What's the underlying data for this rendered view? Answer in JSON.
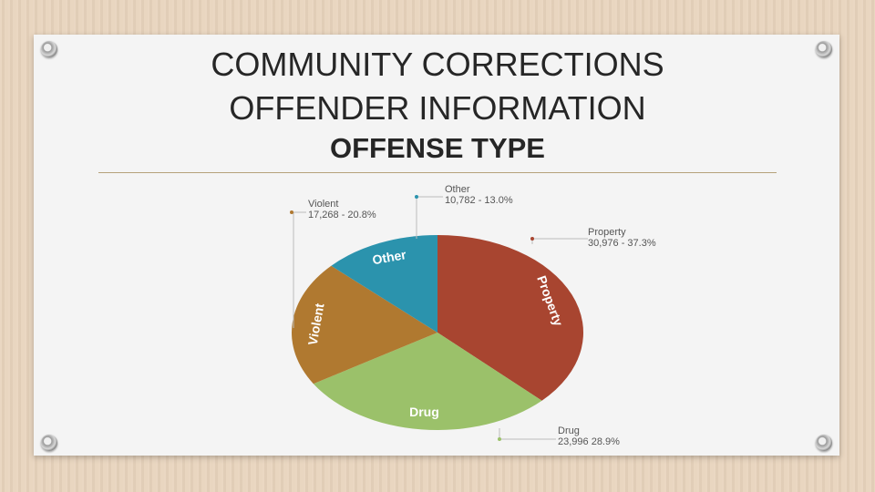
{
  "slide": {
    "title_line1": "COMMUNITY CORRECTIONS",
    "title_line2": "OFFENDER INFORMATION",
    "subtitle": "OFFENSE TYPE"
  },
  "chart_data": {
    "type": "pie",
    "slices": [
      {
        "name": "Property",
        "count": "30,976",
        "percent": 37.3,
        "percent_label": "37.3%",
        "color": "#a84530"
      },
      {
        "name": "Drug",
        "count": "23,996",
        "percent": 28.9,
        "percent_label": "28.9%",
        "color": "#9bc16a"
      },
      {
        "name": "Violent",
        "count": "17,268",
        "percent": 20.8,
        "percent_label": "20.8%",
        "color": "#b07930"
      },
      {
        "name": "Other",
        "count": "10,782",
        "percent": 13.0,
        "percent_label": "13.0%",
        "color": "#2b93ad"
      }
    ],
    "callout_separators": [
      " - ",
      "  ",
      " - ",
      " - "
    ],
    "leader_color": "#bdbdbd"
  }
}
